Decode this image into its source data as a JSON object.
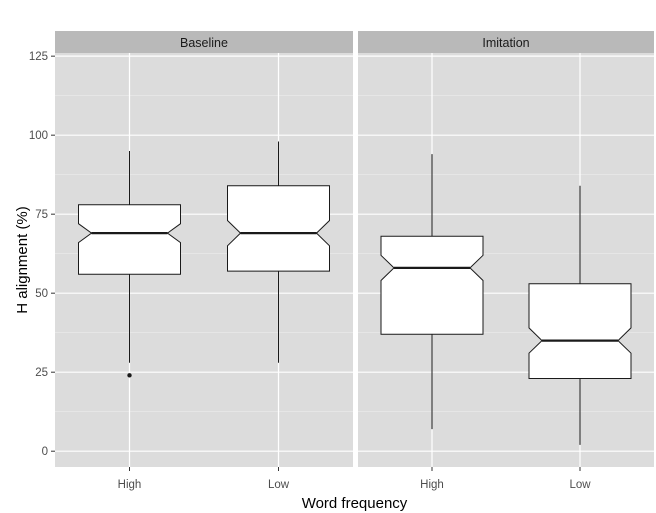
{
  "chart_data": {
    "type": "boxplot",
    "notched": true,
    "xlabel": "Word frequency",
    "ylabel": "H alignment (%)",
    "ylim": [
      -5,
      126
    ],
    "y_ticks": [
      0,
      25,
      50,
      75,
      100,
      125
    ],
    "categories": [
      "High",
      "Low"
    ],
    "grid": true,
    "facets": [
      {
        "label": "Baseline",
        "boxes": [
          {
            "category": "High",
            "whisker_low": 28,
            "q1": 56,
            "median": 69,
            "q3": 78,
            "whisker_high": 95,
            "notch_low": 66,
            "notch_high": 72,
            "outliers": [
              24
            ]
          },
          {
            "category": "Low",
            "whisker_low": 28,
            "q1": 57,
            "median": 69,
            "q3": 84,
            "whisker_high": 98,
            "notch_low": 65,
            "notch_high": 73,
            "outliers": []
          }
        ]
      },
      {
        "label": "Imitation",
        "boxes": [
          {
            "category": "High",
            "whisker_low": 7,
            "q1": 37,
            "median": 58,
            "q3": 68,
            "whisker_high": 94,
            "notch_low": 54,
            "notch_high": 62,
            "outliers": []
          },
          {
            "category": "Low",
            "whisker_low": 2,
            "q1": 23,
            "median": 35,
            "q3": 53,
            "whisker_high": 84,
            "notch_low": 31,
            "notch_high": 39,
            "outliers": []
          }
        ]
      }
    ],
    "colors": {
      "panel_background": "#dcdcdc",
      "strip_background": "#b9b9b9",
      "grid_major": "#ffffff",
      "grid_minor": "#ececec",
      "box_fill": "#ffffff",
      "box_line": "#1a1a1a"
    }
  }
}
